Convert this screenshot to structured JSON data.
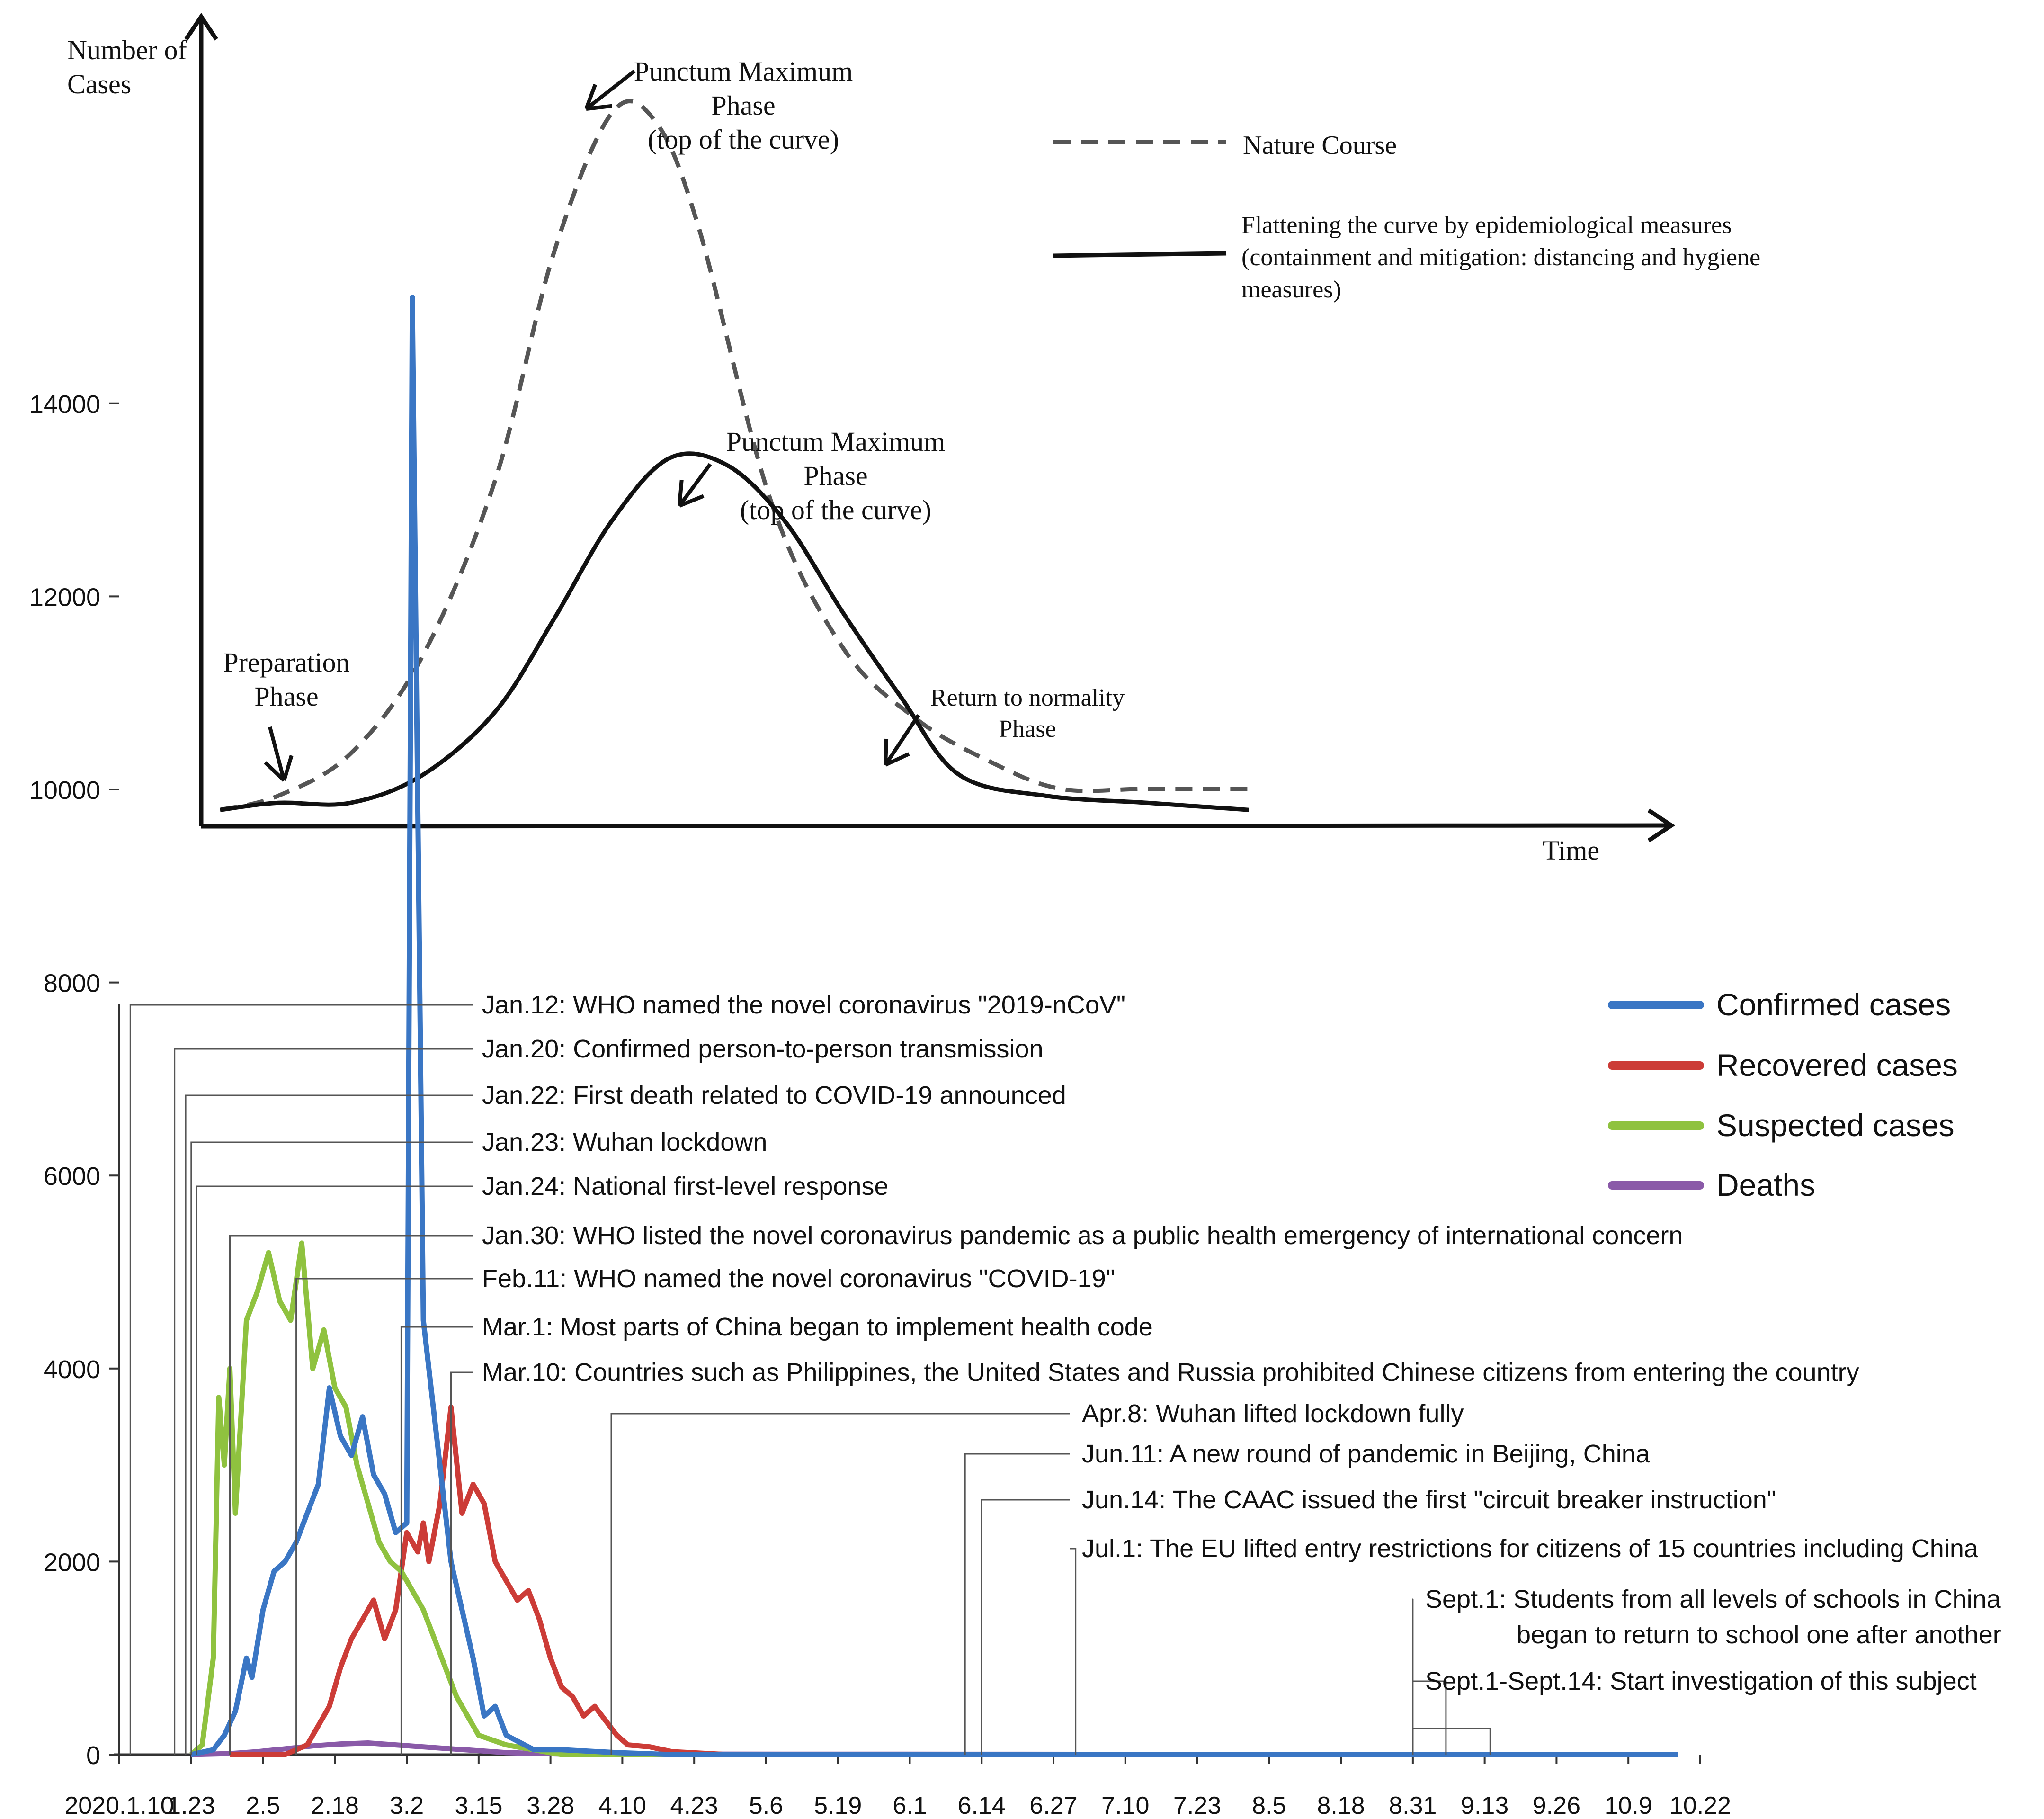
{
  "chart_data": [
    {
      "type": "line",
      "title": "",
      "ylabel": "Number of Cases",
      "xlabel": "Time",
      "series": [
        {
          "name": "Nature Course",
          "color": "#555555",
          "style": "dashed",
          "x": [
            0,
            4,
            9,
            14,
            19,
            23,
            27,
            30,
            33,
            38,
            43,
            48,
            53,
            58,
            64,
            71
          ],
          "values": [
            1,
            3,
            9,
            23,
            48,
            80,
            100,
            99,
            84,
            45,
            24,
            14,
            8,
            4,
            4,
            4
          ]
        },
        {
          "name": "Flattening the curve by epidemiological measures (containment and mitigation: distancing and hygiene measures)",
          "color": "#111111",
          "style": "solid",
          "x": [
            0,
            4,
            9,
            14,
            19,
            23,
            27,
            31,
            35,
            39,
            43,
            47,
            51,
            57,
            64,
            71
          ],
          "values": [
            1,
            2,
            2,
            6,
            15,
            28,
            42,
            51,
            50,
            42,
            29,
            17,
            6,
            3,
            2,
            1
          ]
        }
      ],
      "annotations": [
        {
          "id": "peak_nature",
          "lines": [
            "Punctum Maximum",
            "Phase",
            "(top of the curve)"
          ]
        },
        {
          "id": "peak_flat",
          "lines": [
            "Punctum Maximum",
            "Phase",
            "(top of the curve)"
          ]
        },
        {
          "id": "preparation",
          "lines": [
            "Preparation",
            "Phase"
          ]
        },
        {
          "id": "return",
          "lines": [
            "Return to normality",
            "Phase"
          ]
        }
      ],
      "ylabel_lines": [
        "Number of",
        "Cases"
      ],
      "legend_lines": {
        "nature": [
          "Nature Course"
        ],
        "flat": [
          "Flattening the curve by epidemiological measures",
          "(containment and mitigation: distancing and hygiene",
          "measures)"
        ]
      },
      "legend": "top-right"
    },
    {
      "type": "line",
      "title": "",
      "ylim": [
        0,
        15000
      ],
      "yticks": [
        0,
        2000,
        4000,
        6000,
        8000,
        10000,
        12000,
        14000
      ],
      "ytick_labels": [
        "0",
        "2000",
        "4000",
        "6000",
        "8000",
        "10000",
        "12000",
        "14000"
      ],
      "xtick_labels": [
        "2020.1.10",
        "1.23",
        "2.5",
        "2.18",
        "3.2",
        "3.15",
        "3.28",
        "4.10",
        "4.23",
        "5.6",
        "5.19",
        "6.1",
        "6.14",
        "6.27",
        "7.10",
        "7.23",
        "8.5",
        "8.18",
        "8.31",
        "9.13",
        "9.26",
        "10.9",
        "10.22"
      ],
      "legend": "top-right",
      "series": [
        {
          "name": "Confirmed cases",
          "color": "#3a76c4",
          "x": [
            13,
            17,
            19,
            21,
            23,
            24,
            26,
            28,
            30,
            32,
            34,
            36,
            38,
            40,
            42,
            44,
            46,
            48,
            50,
            52,
            53,
            55,
            58,
            60,
            62,
            64,
            66,
            68,
            70,
            75,
            80,
            90,
            100,
            282
          ],
          "values": [
            0,
            50,
            200,
            450,
            1000,
            800,
            1500,
            1900,
            2000,
            2200,
            2500,
            2800,
            3800,
            3300,
            3100,
            3500,
            2900,
            2700,
            2300,
            2400,
            15100,
            4500,
            3000,
            2000,
            1500,
            1000,
            400,
            500,
            200,
            50,
            50,
            20,
            0,
            0
          ]
        },
        {
          "name": "Recovered cases",
          "color": "#cc3c37",
          "x": [
            20,
            30,
            34,
            36,
            38,
            40,
            42,
            44,
            46,
            48,
            50,
            52,
            54,
            55,
            56,
            58,
            60,
            62,
            64,
            66,
            68,
            70,
            72,
            74,
            76,
            78,
            80,
            82,
            84,
            86,
            88,
            90,
            92,
            96,
            100,
            110,
            282
          ],
          "values": [
            0,
            0,
            100,
            300,
            500,
            900,
            1200,
            1400,
            1600,
            1200,
            1500,
            2300,
            2100,
            2400,
            2000,
            2600,
            3600,
            2500,
            2800,
            2600,
            2000,
            1800,
            1600,
            1700,
            1400,
            1000,
            700,
            600,
            400,
            500,
            350,
            200,
            100,
            80,
            30,
            0,
            0
          ]
        },
        {
          "name": "Suspected cases",
          "color": "#8fc23f",
          "x": [
            13,
            15,
            17,
            18,
            19,
            20,
            21,
            22,
            23,
            25,
            27,
            29,
            31,
            33,
            35,
            37,
            39,
            41,
            43,
            45,
            47,
            49,
            51,
            53,
            55,
            57,
            59,
            61,
            63,
            65,
            70,
            75,
            80,
            282
          ],
          "values": [
            0,
            100,
            1000,
            3700,
            3000,
            4000,
            2500,
            3500,
            4500,
            4800,
            5200,
            4700,
            4500,
            5300,
            4000,
            4400,
            3800,
            3600,
            3000,
            2600,
            2200,
            2000,
            1900,
            1700,
            1500,
            1200,
            900,
            600,
            400,
            200,
            100,
            50,
            0,
            0
          ]
        },
        {
          "name": "Deaths",
          "color": "#8a5aa8",
          "x": [
            13,
            20,
            25,
            30,
            35,
            40,
            45,
            50,
            55,
            60,
            65,
            70,
            80,
            282
          ],
          "values": [
            0,
            10,
            30,
            60,
            90,
            110,
            120,
            100,
            80,
            60,
            40,
            20,
            5,
            0
          ]
        }
      ],
      "events": [
        "Jan.12: WHO named the novel coronavirus \"2019-nCoV\"",
        "Jan.20: Confirmed person-to-person transmission",
        "Jan.22: First death related to COVID-19 announced",
        "Jan.23: Wuhan lockdown",
        "Jan.24: National first-level response",
        "Jan.30: WHO listed the novel coronavirus pandemic as a public health emergency of international concern",
        "Feb.11: WHO named the novel coronavirus \"COVID-19\"",
        "Mar.1: Most parts of China began to implement health code",
        "Mar.10: Countries such as Philippines, the United States and Russia prohibited Chinese citizens from entering the country",
        "Apr.8: Wuhan lifted lockdown fully",
        "Jun.11: A new round of pandemic in Beijing, China",
        "Jun.14: The CAAC issued the first \"circuit breaker instruction\"",
        "Jul.1: The EU lifted entry restrictions for citizens of 15 countries including China",
        "Sept.1: Students from all levels of schools in China began to return to school one after another",
        "Sept.1-Sept.14: Start investigation of this subject"
      ],
      "event_lines": {
        "sept1": [
          "Sept.1: Students from all levels of schools in China",
          "began to return to school one after another"
        ]
      }
    }
  ]
}
